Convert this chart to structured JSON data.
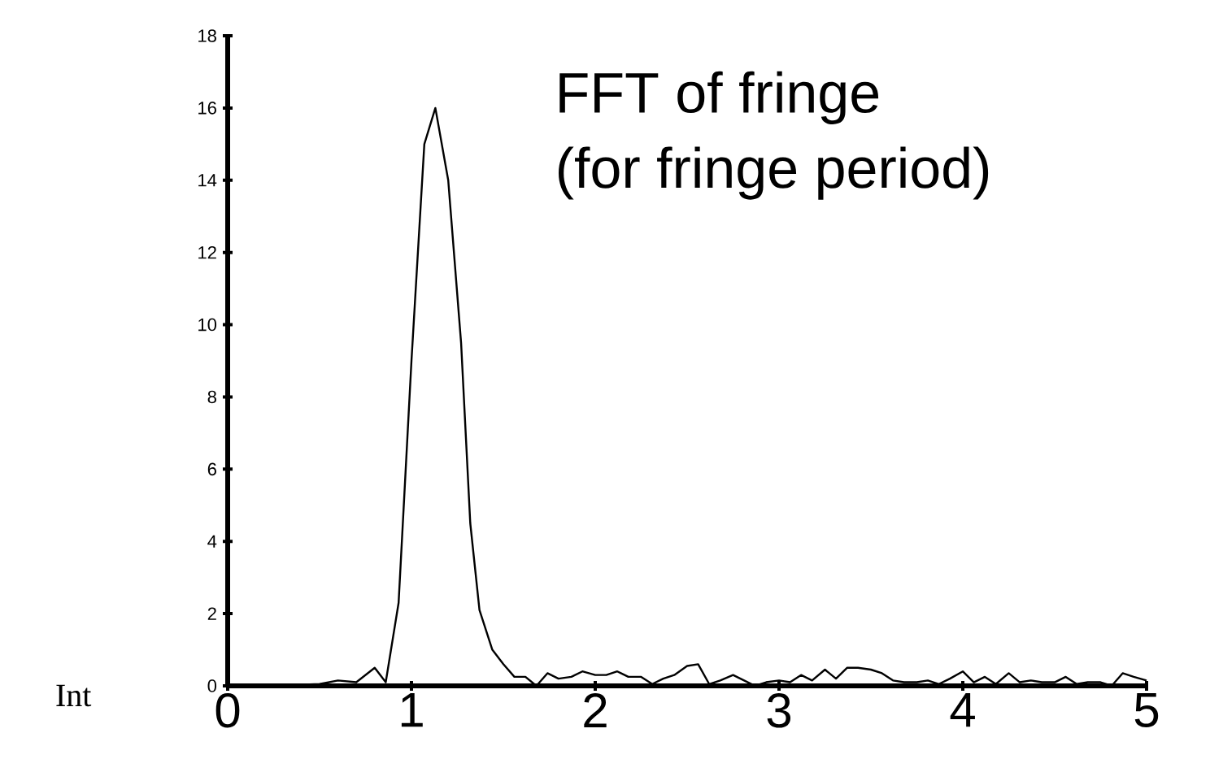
{
  "chart_data": {
    "type": "line",
    "title": "FFT of fringe",
    "subtitle": "(for fringe period)",
    "ylabel": "Int",
    "x": [
      0,
      0.25,
      0.5,
      0.6,
      0.7,
      0.8,
      0.86,
      0.93,
      1.0,
      1.07,
      1.13,
      1.2,
      1.27,
      1.32,
      1.37,
      1.44,
      1.5,
      1.56,
      1.62,
      1.68,
      1.74,
      1.8,
      1.87,
      1.93,
      2.0,
      2.06,
      2.12,
      2.18,
      2.25,
      2.31,
      2.37,
      2.43,
      2.5,
      2.56,
      2.62,
      2.68,
      2.75,
      2.81,
      2.87,
      2.93,
      3.0,
      3.06,
      3.12,
      3.18,
      3.25,
      3.31,
      3.37,
      3.43,
      3.5,
      3.56,
      3.62,
      3.68,
      3.75,
      3.81,
      3.87,
      3.93,
      4.0,
      4.06,
      4.12,
      4.18,
      4.25,
      4.31,
      4.37,
      4.43,
      4.5,
      4.56,
      4.62,
      4.68,
      4.75,
      4.81,
      4.87,
      4.93,
      5.0
    ],
    "values": [
      0,
      0,
      0.05,
      0.15,
      0.1,
      0.5,
      0.1,
      2.3,
      9,
      15,
      16,
      14,
      9.5,
      4.5,
      2.1,
      1.0,
      0.6,
      0.25,
      0.25,
      0,
      0.35,
      0.2,
      0.25,
      0.4,
      0.3,
      0.3,
      0.4,
      0.25,
      0.25,
      0.05,
      0.2,
      0.3,
      0.55,
      0.6,
      0.05,
      0.15,
      0.3,
      0.15,
      0,
      0.1,
      0.15,
      0.1,
      0.3,
      0.15,
      0.45,
      0.2,
      0.5,
      0.5,
      0.45,
      0.35,
      0.15,
      0.1,
      0.1,
      0.15,
      0.05,
      0.2,
      0.4,
      0.1,
      0.25,
      0.05,
      0.35,
      0.1,
      0.15,
      0.1,
      0.1,
      0.25,
      0.05,
      0.1,
      0.1,
      0,
      0.35,
      0.25,
      0.15
    ],
    "color": "#000000",
    "xlim": [
      0,
      5
    ],
    "ylim": [
      0,
      18
    ],
    "xticks": [
      0,
      1,
      2,
      3,
      4,
      5
    ],
    "yticks": [
      0,
      2,
      4,
      6,
      8,
      10,
      12,
      14,
      16,
      18
    ]
  }
}
